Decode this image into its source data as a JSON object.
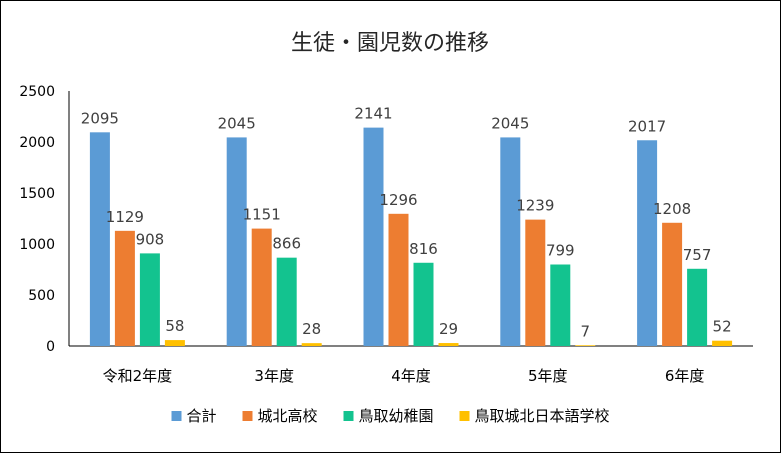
{
  "chart_data": {
    "type": "bar",
    "title": "生徒・園児数の推移",
    "xlabel": "",
    "ylabel": "",
    "ylim": [
      0,
      2500
    ],
    "yticks": [
      0,
      500,
      1000,
      1500,
      2000,
      2500
    ],
    "grid": false,
    "legend_position": "bottom",
    "categories": [
      "令和2年度",
      "3年度",
      "4年度",
      "5年度",
      "6年度"
    ],
    "series": [
      {
        "name": "合計",
        "color": "#5B9BD5",
        "values": [
          2095,
          2045,
          2141,
          2045,
          2017
        ]
      },
      {
        "name": "城北高校",
        "color": "#ED7D31",
        "values": [
          1129,
          1151,
          1296,
          1239,
          1208
        ]
      },
      {
        "name": "鳥取幼稚園",
        "color": "#13C38F",
        "values": [
          908,
          866,
          816,
          799,
          757
        ]
      },
      {
        "name": "鳥取城北日本語学校",
        "color": "#FFC000",
        "values": [
          58,
          28,
          29,
          7,
          52
        ]
      }
    ]
  }
}
